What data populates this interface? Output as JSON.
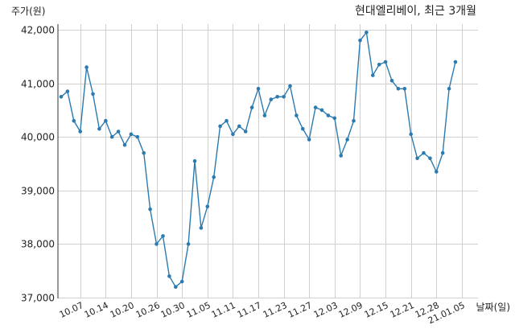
{
  "chart_data": {
    "type": "line",
    "title": "현대엘리베이, 최근 3개월",
    "ylabel": "주가(원)",
    "xlabel": "날짜(일)",
    "ylim": [
      37000,
      42200
    ],
    "yticks": [
      37000,
      38000,
      39000,
      40000,
      41000,
      42000
    ],
    "ytick_labels": [
      "37,000",
      "38,000",
      "39,000",
      "40,000",
      "41,000",
      "42,000"
    ],
    "xtick_labels": [
      "10.07",
      "10.14",
      "10.20",
      "10.26",
      "10.30",
      "11.05",
      "11.11",
      "11.17",
      "11.23",
      "11.27",
      "12.03",
      "12.09",
      "12.15",
      "12.21",
      "12.28",
      "21.01.05"
    ],
    "xtick_index": [
      3,
      7,
      11,
      15,
      19,
      23,
      27,
      31,
      35,
      39,
      43,
      47,
      51,
      55,
      59,
      63
    ],
    "grid": true,
    "color": "#2b7bb0",
    "values": [
      40750,
      40850,
      40300,
      40100,
      41300,
      40800,
      40150,
      40300,
      40000,
      40100,
      39850,
      40050,
      40000,
      39700,
      38650,
      38000,
      38150,
      37400,
      37200,
      37300,
      38000,
      39550,
      38300,
      38700,
      39250,
      40200,
      40300,
      40050,
      40200,
      40100,
      40550,
      40900,
      40400,
      40700,
      40750,
      40750,
      40950,
      40400,
      40150,
      39950,
      40550,
      40500,
      40400,
      40350,
      39650,
      39950,
      40300,
      41800,
      41950,
      41150,
      41350,
      41400,
      41050,
      40900,
      40900,
      40050,
      39600,
      39700,
      39600,
      39350,
      39700,
      40900,
      41400
    ]
  }
}
